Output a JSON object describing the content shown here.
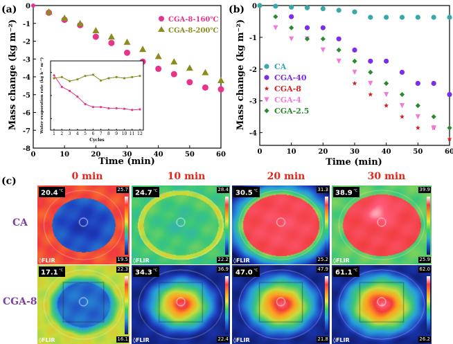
{
  "panel_a": {
    "label": "(a)",
    "chart_data": {
      "type": "scatter",
      "xlabel": "Time (min)",
      "ylabel": "Mass change (kg m⁻²)",
      "xlim": [
        0,
        60
      ],
      "ylim": [
        -8,
        0
      ],
      "xticks": [
        "0",
        "10",
        "20",
        "30",
        "40",
        "50",
        "60"
      ],
      "yticks": [
        "0",
        "-1",
        "-2",
        "-3",
        "-4",
        "-5",
        "-6",
        "-7",
        "-8"
      ],
      "series": [
        {
          "name": "CGA-8-160℃",
          "marker": "circle",
          "color": "#e8338a",
          "x": [
            5,
            10,
            15,
            20,
            25,
            30,
            35,
            40,
            45,
            50,
            55,
            60
          ],
          "values": [
            -0.4,
            -0.8,
            -1.1,
            -1.75,
            -2.1,
            -2.65,
            -3.15,
            -3.55,
            -3.85,
            -4.3,
            -4.6,
            -4.7
          ]
        },
        {
          "name": "CGA-8-200℃",
          "marker": "triangle",
          "color": "#8b8b1e",
          "x": [
            5,
            10,
            15,
            20,
            25,
            30,
            35,
            40,
            45,
            50,
            55,
            60
          ],
          "values": [
            -0.35,
            -0.7,
            -1.0,
            -1.4,
            -1.75,
            -2.05,
            -2.45,
            -2.85,
            -3.15,
            -3.5,
            -3.75,
            -4.2
          ]
        }
      ]
    },
    "inset": {
      "xlabel": "Cycles",
      "ylabel": "Water evaporation rate (kg h⁻¹ m⁻²)",
      "xticks": [
        "1",
        "2",
        "3",
        "4",
        "5",
        "6",
        "7",
        "8",
        "9",
        "10",
        "11",
        "12"
      ],
      "series": [
        {
          "name": "CGA-8-160℃",
          "color": "#e8338a",
          "values": [
            1.75,
            1.55,
            1.48,
            1.38,
            1.25,
            1.2,
            1.2,
            1.18,
            1.18,
            1.17,
            1.15,
            1.16
          ]
        },
        {
          "name": "CGA-8-200℃",
          "color": "#8b8b1e",
          "values": [
            1.7,
            1.72,
            1.65,
            1.68,
            1.74,
            1.76,
            1.66,
            1.7,
            1.72,
            1.7,
            1.72,
            1.74
          ]
        }
      ],
      "ylim": [
        0.8,
        2.0
      ]
    }
  },
  "panel_b": {
    "label": "(b)",
    "chart_data": {
      "type": "scatter",
      "xlabel": "Time (min)",
      "ylabel": "Mass change (kg m⁻²)",
      "xlim": [
        0,
        60
      ],
      "ylim": [
        -4.4,
        0
      ],
      "xticks": [
        "0",
        "10",
        "20",
        "30",
        "40",
        "50",
        "60"
      ],
      "yticks": [
        "0",
        "-1",
        "-2",
        "-3",
        "-4"
      ],
      "series": [
        {
          "name": "CA",
          "marker": "circle",
          "color": "#3aa8a8",
          "x": [
            5,
            10,
            15,
            20,
            25,
            30,
            35,
            40,
            45,
            50,
            55,
            60
          ],
          "values": [
            -0.02,
            -0.05,
            -0.07,
            -0.1,
            -0.15,
            -0.2,
            -0.37,
            -0.37,
            -0.37,
            -0.37,
            -0.37,
            -0.37
          ]
        },
        {
          "name": "CGA-40",
          "marker": "circle",
          "color": "#7a2ee6",
          "x": [
            10,
            15,
            20,
            25,
            30,
            35,
            40,
            45,
            50,
            55,
            60
          ],
          "values": [
            -0.35,
            -0.7,
            -0.7,
            -1.05,
            -1.4,
            -1.75,
            -1.75,
            -2.1,
            -2.45,
            -2.45,
            -2.8
          ]
        },
        {
          "name": "CGA-8",
          "marker": "star",
          "color": "#d62020",
          "x": [
            30,
            35,
            40,
            45,
            50,
            55,
            60
          ],
          "values": [
            -2.45,
            -2.8,
            -3.15,
            -3.5,
            -3.85,
            -3.85,
            -4.2
          ]
        },
        {
          "name": "CGA-4",
          "marker": "triangle-down",
          "color": "#f07ad8",
          "x": [
            5,
            10,
            15,
            20,
            25,
            30,
            35,
            40,
            45,
            50,
            55
          ],
          "values": [
            -0.7,
            -1.05,
            -1.05,
            -1.4,
            -1.75,
            -2.1,
            -2.45,
            -2.8,
            -3.15,
            -3.5,
            -3.85
          ]
        },
        {
          "name": "CGA-2.5",
          "marker": "diamond",
          "color": "#2b8a2b",
          "x": [
            5,
            10,
            15,
            20,
            25,
            30,
            35,
            40,
            45,
            50,
            55,
            60
          ],
          "values": [
            -0.35,
            -0.7,
            -1.05,
            -1.05,
            -1.4,
            -1.75,
            -2.1,
            -2.45,
            -2.8,
            -3.15,
            -3.5,
            -3.85
          ]
        }
      ]
    }
  },
  "panel_c": {
    "label": "(c)",
    "time_labels": [
      "0 min",
      "10 min",
      "20 min",
      "30 min"
    ],
    "row_labels": [
      "CA",
      "CGA-8"
    ],
    "brand": "FLIR",
    "unit": "°C",
    "images": [
      {
        "row": 0,
        "temp": "20.4",
        "max": "25.7",
        "min": "19.5",
        "theme": "ca0"
      },
      {
        "row": 0,
        "temp": "24.7",
        "max": "28.4",
        "min": "22.2",
        "theme": "ca10"
      },
      {
        "row": 0,
        "temp": "30.5",
        "max": "31.3",
        "min": "25.2",
        "theme": "ca20"
      },
      {
        "row": 0,
        "temp": "38.9",
        "max": "39.9",
        "min": "25.9",
        "theme": "ca30"
      },
      {
        "row": 1,
        "temp": "17.1",
        "max": "22.3",
        "min": "16.1",
        "theme": "cg0"
      },
      {
        "row": 1,
        "temp": "34.3",
        "max": "36.9",
        "min": "22.4",
        "theme": "cg10"
      },
      {
        "row": 1,
        "temp": "47.0",
        "max": "47.9",
        "min": "21.8",
        "theme": "cg20"
      },
      {
        "row": 1,
        "temp": "61.1",
        "max": "62.0",
        "min": "26.2",
        "theme": "cg30"
      }
    ]
  }
}
